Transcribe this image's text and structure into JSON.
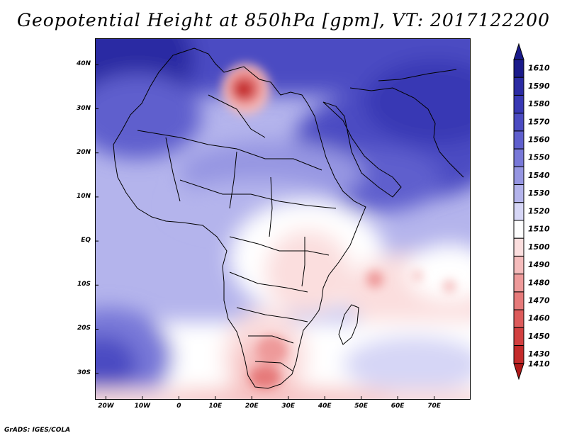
{
  "title": "Geopotential Height at 850hPa [gpm], VT: 2017122200",
  "footer": "GrADS: IGES/COLA",
  "map": {
    "variable": "Geopotential Height",
    "level": "850hPa",
    "units": "gpm",
    "valid_time": "2017122200",
    "lon_range": [
      -23,
      80
    ],
    "lat_range": [
      -36,
      46
    ],
    "lat_ticks": [
      {
        "value": 40,
        "label": "40N"
      },
      {
        "value": 30,
        "label": "30N"
      },
      {
        "value": 20,
        "label": "20N"
      },
      {
        "value": 10,
        "label": "10N"
      },
      {
        "value": 0,
        "label": "EQ"
      },
      {
        "value": -10,
        "label": "10S"
      },
      {
        "value": -20,
        "label": "20S"
      },
      {
        "value": -30,
        "label": "30S"
      }
    ],
    "lon_ticks": [
      {
        "value": -20,
        "label": "20W"
      },
      {
        "value": -10,
        "label": "10W"
      },
      {
        "value": 0,
        "label": "0"
      },
      {
        "value": 10,
        "label": "10E"
      },
      {
        "value": 20,
        "label": "20E"
      },
      {
        "value": 30,
        "label": "30E"
      },
      {
        "value": 40,
        "label": "40E"
      },
      {
        "value": 50,
        "label": "50E"
      },
      {
        "value": 60,
        "label": "60E"
      },
      {
        "value": 70,
        "label": "70E"
      }
    ]
  },
  "colorbar": {
    "levels": [
      {
        "label": "1610",
        "color": "#1a1a8a"
      },
      {
        "label": "1590",
        "color": "#2b2ba3"
      },
      {
        "label": "1580",
        "color": "#3838b4"
      },
      {
        "label": "1570",
        "color": "#4b4bc2"
      },
      {
        "label": "1560",
        "color": "#5f5fcd"
      },
      {
        "label": "1550",
        "color": "#7878d8"
      },
      {
        "label": "1540",
        "color": "#9696e2"
      },
      {
        "label": "1530",
        "color": "#b4b4ec"
      },
      {
        "label": "1520",
        "color": "#d6d6f6"
      },
      {
        "label": "1510",
        "color": "#ffffff"
      },
      {
        "label": "1500",
        "color": "#fbdede"
      },
      {
        "label": "1490",
        "color": "#f5bcbc"
      },
      {
        "label": "1480",
        "color": "#ee9a9a"
      },
      {
        "label": "1470",
        "color": "#e67a7a"
      },
      {
        "label": "1460",
        "color": "#dd5b5b"
      },
      {
        "label": "1450",
        "color": "#d24040"
      },
      {
        "label": "1430",
        "color": "#c42a2a"
      },
      {
        "label": "1410",
        "color": "#b01818"
      }
    ]
  }
}
